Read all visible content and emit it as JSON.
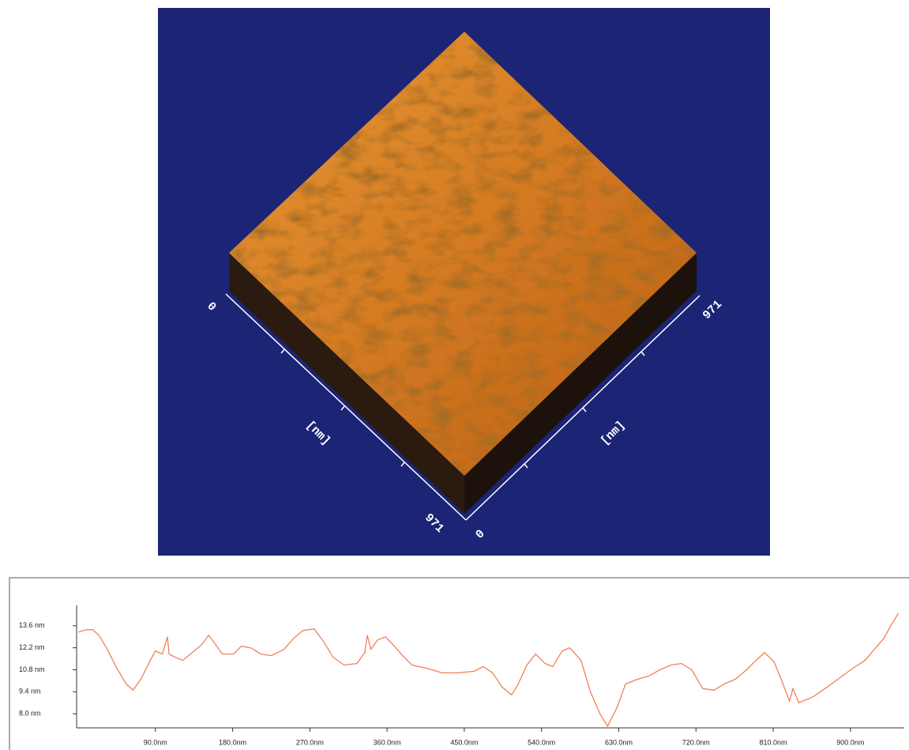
{
  "chart_data": [
    {
      "type": "surface",
      "x_axis_label": "[nm]",
      "y_axis_label": "[nm]",
      "xlim": [
        0,
        971
      ],
      "ylim": [
        0,
        971
      ]
    },
    {
      "type": "line",
      "color": "#f0805a",
      "x": [
        0,
        10,
        17,
        24,
        33,
        45,
        56,
        64,
        73,
        84,
        90,
        98,
        104,
        106,
        113,
        122,
        133,
        144,
        152,
        159,
        168,
        181,
        190,
        201,
        213,
        225,
        240,
        251,
        262,
        275,
        286,
        297,
        310,
        325,
        334,
        337,
        341,
        349,
        358,
        367,
        378,
        389,
        406,
        424,
        442,
        461,
        472,
        483,
        494,
        505,
        512,
        523,
        533,
        544,
        553,
        564,
        573,
        586,
        597,
        608,
        617,
        628,
        638,
        652,
        665,
        678,
        691,
        703,
        715,
        728,
        741,
        753,
        766,
        779,
        790,
        800,
        811,
        820,
        829,
        833,
        840,
        857,
        873,
        888,
        903,
        917,
        928,
        939,
        948,
        956
      ],
      "values": [
        13.2,
        13.35,
        13.35,
        13.0,
        12.2,
        10.9,
        9.9,
        9.5,
        10.2,
        11.4,
        12.0,
        11.8,
        12.9,
        11.8,
        11.6,
        11.4,
        11.9,
        12.4,
        13.0,
        12.5,
        11.8,
        11.8,
        12.3,
        12.2,
        11.8,
        11.7,
        12.1,
        12.8,
        13.3,
        13.4,
        12.6,
        11.6,
        11.1,
        11.2,
        11.9,
        13.0,
        12.1,
        12.7,
        12.9,
        12.4,
        11.7,
        11.1,
        10.9,
        10.6,
        10.6,
        10.7,
        11.0,
        10.6,
        9.7,
        9.2,
        9.8,
        11.1,
        11.8,
        11.2,
        11.0,
        12.0,
        12.2,
        11.4,
        9.4,
        8.0,
        7.2,
        8.4,
        9.9,
        10.2,
        10.4,
        10.8,
        11.1,
        11.2,
        10.8,
        9.6,
        9.5,
        9.9,
        10.2,
        10.8,
        11.4,
        11.9,
        11.3,
        10.1,
        8.8,
        9.6,
        8.7,
        9.1,
        9.7,
        10.3,
        10.9,
        11.4,
        12.1,
        12.8,
        13.7,
        14.4
      ],
      "xlim": [
        0,
        960
      ],
      "ylim": [
        7.2,
        14.8
      ],
      "xticks": [
        {
          "value": 90,
          "label": "90.0nm"
        },
        {
          "value": 180,
          "label": "180.0nm"
        },
        {
          "value": 270,
          "label": "270.0nm"
        },
        {
          "value": 360,
          "label": "360.0nm"
        },
        {
          "value": 450,
          "label": "450.0nm"
        },
        {
          "value": 540,
          "label": "540.0nm"
        },
        {
          "value": 630,
          "label": "630.0nm"
        },
        {
          "value": 720,
          "label": "720.0nm"
        },
        {
          "value": 810,
          "label": "810.0nm"
        },
        {
          "value": 900,
          "label": "900.0nm"
        }
      ],
      "yticks": [
        {
          "value": 8.0,
          "label": "8.0 nm"
        },
        {
          "value": 9.4,
          "label": "9.4 nm"
        },
        {
          "value": 10.8,
          "label": "10.8 nm"
        },
        {
          "value": 12.2,
          "label": "12.2 nm"
        },
        {
          "value": 13.6,
          "label": "13.6 nm"
        }
      ]
    }
  ]
}
